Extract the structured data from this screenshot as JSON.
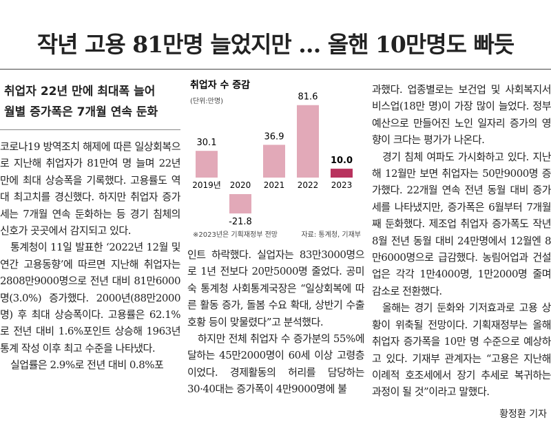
{
  "headline": "작년 고용 81만명 늘었지만 … 올핸 10만명도 빠듯",
  "subheadline": [
    "취업자 22년 만에 최대폭 늘어",
    "월별 증가폭은 7개월 연속 둔화"
  ],
  "columns": [
    [
      "코로나19 방역조치 해제에 따른 일상회복으로 지난해 취업자가 81만여 명 늘며 22년 만에 최대 상승폭을 기록했다. 고용률도 역대 최고치를 경신했다. 하지만 취업자 증가세는 7개월 연속 둔화하는 등 경기 침체의 신호가 곳곳에서 감지되고 있다.",
      "통계청이 11일 발표한 ‘2022년 12월 및 연간 고용동향’에 따르면 지난해 취업자는 2808만9000명으로 전년 대비 81만6000명(3.0%) 증가했다. 2000년(88만2000명) 후 최대 상승폭이다. 고용률은 62.1%로 전년 대비 1.6%포인트 상승해 1963년 통계 작성 이후 최고 수준을 나타냈다.",
      "실업률은 2.9%로 전년 대비 0.8%포"
    ],
    [
      "인트 하락했다. 실업자는 83만3000명으로 1년 전보다 20만5000명 줄었다. 공미숙 통계청 사회통계국장은 “일상회복에 따른 활동 증가, 돌봄 수요 확대, 상반기 수출 호황 등이 맞물렸다”고 분석했다.",
      "하지만 전체 취업자 수 증가분의 55%에 달하는 45만2000명이 60세 이상 고령층이었다. 경제활동의 허리를 담당하는 30·40대는 증가폭이 4만9000명에 불"
    ],
    [
      "과했다. 업종별로는 보건업 및 사회복지서비스업(18만 명)이 가장 많이 늘었다. 정부 예산으로 만들어진 노인 일자리 증가의 영향이 크다는 평가가 나온다.",
      "경기 침체 여파도 가시화하고 있다. 지난해 12월만 보면 취업자는 50만9000명 증가했다. 22개월 연속 전년 동월 대비 증가세를 나타냈지만, 증가폭은 6월부터 7개월째 둔화했다. 제조업 취업자 증가폭도 작년 8월 전년 동월 대비 24만명에서 12월엔 8만6000명으로 급감했다. 농림어업과 건설업은 각각 1만4000명, 1만2000명 줄며 감소로 전환했다.",
      "올해는 경기 둔화와 기저효과로 고용 상황이 위축될 전망이다. 기획재정부는 올해 취업자 증가폭을 10만 명 수준으로 예상하고 있다. 기재부 관계자는 “고용은 지난해 이례적 호조세에서 장기 추세로 복귀하는 과정이 될 것”이라고 말했다."
    ]
  ],
  "byline": "황정환 기자",
  "chart_data": {
    "type": "bar",
    "title": "취업자 수 증감",
    "subtitle": "(단위:만명)",
    "categories": [
      "2019년",
      "2020",
      "2021",
      "2022",
      "2023"
    ],
    "values": [
      30.1,
      -21.8,
      36.9,
      81.6,
      10.0
    ],
    "value_labels": [
      "30.1",
      "-21.8",
      "36.9",
      "81.6",
      "10.0"
    ],
    "colors": [
      "#e2a9b8",
      "#e2a9b8",
      "#e2a9b8",
      "#e2a9b8",
      "#b8335e"
    ],
    "notes": [
      "※2023년은 기획재정부 전망",
      "자료: 통계청, 기재부"
    ]
  }
}
